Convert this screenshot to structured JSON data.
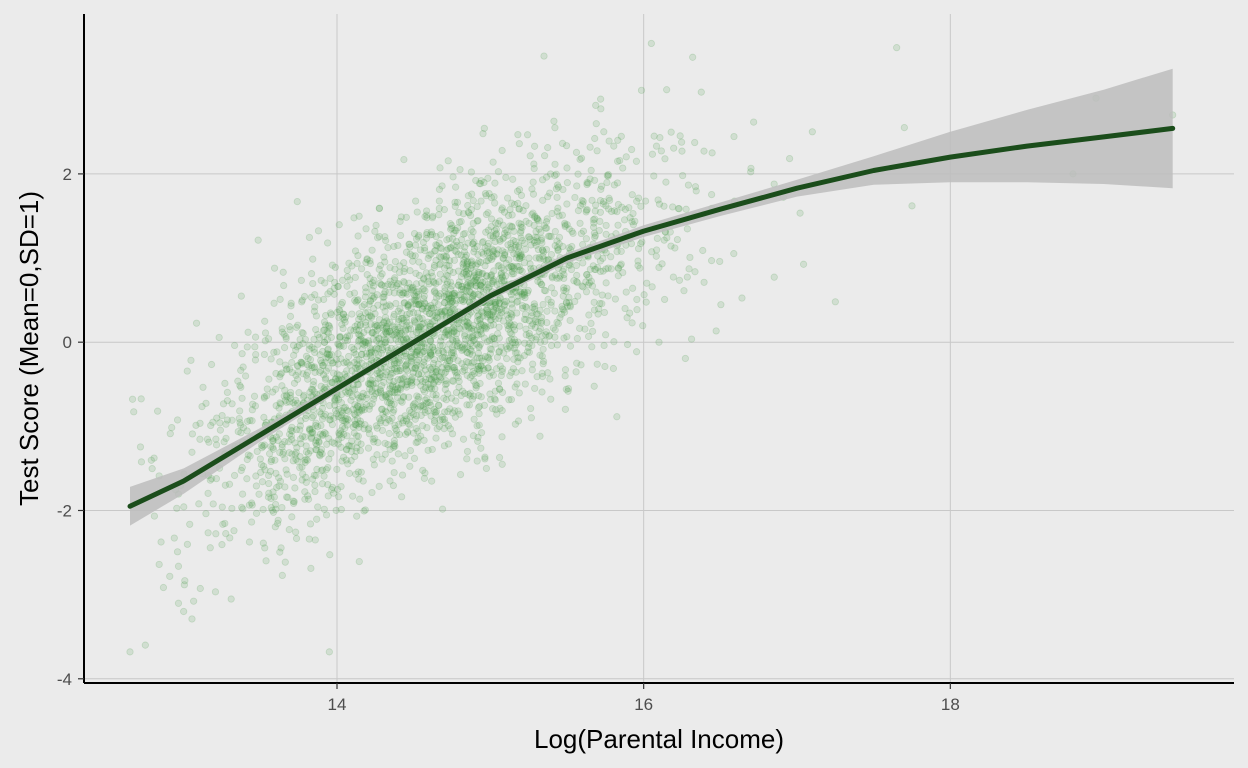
{
  "chart_data": {
    "type": "scatter",
    "title": "",
    "xlabel": "Log(Parental Income)",
    "ylabel": "Test Score (Mean=0,SD=1)",
    "xlim": [
      12.35,
      19.85
    ],
    "ylim": [
      -4.05,
      3.9
    ],
    "x_ticks": [
      14,
      16,
      18
    ],
    "y_ticks": [
      -4,
      -2,
      0,
      2
    ],
    "x_tick_labels": [
      "14",
      "16",
      "18"
    ],
    "y_tick_labels": [
      "-4",
      "-2",
      "0",
      "2"
    ],
    "grid": true,
    "legend": "none",
    "colors": {
      "panel_background": "#ebebeb",
      "grid": "#c8c8c8",
      "points": "#4a9a4a",
      "fit_line": "#1b4d1b",
      "ribbon": "#bdbdbd",
      "axis_line": "#000000"
    },
    "scatter": {
      "n_points": 3000,
      "x_mean": 14.6,
      "x_sd": 0.72,
      "point_opacity": 0.16,
      "outliers": [
        {
          "x": 12.65,
          "y": -3.68
        },
        {
          "x": 12.75,
          "y": -3.6
        },
        {
          "x": 13.0,
          "y": -3.2
        },
        {
          "x": 16.05,
          "y": 3.55
        },
        {
          "x": 15.35,
          "y": 3.4
        },
        {
          "x": 17.65,
          "y": 3.5
        },
        {
          "x": 17.7,
          "y": 2.55
        },
        {
          "x": 18.95,
          "y": 2.9
        },
        {
          "x": 18.8,
          "y": 2.0
        },
        {
          "x": 19.45,
          "y": 2.7
        },
        {
          "x": 17.25,
          "y": 0.48
        },
        {
          "x": 16.1,
          "y": 0.0
        },
        {
          "x": 17.75,
          "y": 1.62
        },
        {
          "x": 17.1,
          "y": 2.5
        },
        {
          "x": 13.95,
          "y": -3.68
        },
        {
          "x": 16.15,
          "y": 3.0
        }
      ]
    },
    "fit": {
      "x": [
        12.65,
        13.0,
        13.5,
        14.0,
        14.5,
        15.0,
        15.5,
        16.0,
        16.5,
        17.0,
        17.5,
        18.0,
        18.5,
        19.0,
        19.45
      ],
      "y": [
        -1.95,
        -1.65,
        -1.1,
        -0.55,
        0.0,
        0.55,
        1.0,
        1.32,
        1.58,
        1.83,
        2.04,
        2.2,
        2.33,
        2.44,
        2.54
      ],
      "lower": [
        -2.18,
        -1.8,
        -1.18,
        -0.6,
        -0.04,
        0.5,
        0.94,
        1.25,
        1.5,
        1.73,
        1.87,
        1.9,
        1.9,
        1.88,
        1.83
      ],
      "upper": [
        -1.72,
        -1.5,
        -1.02,
        -0.5,
        0.04,
        0.6,
        1.06,
        1.39,
        1.66,
        1.93,
        2.21,
        2.5,
        2.76,
        3.0,
        3.25
      ]
    }
  }
}
